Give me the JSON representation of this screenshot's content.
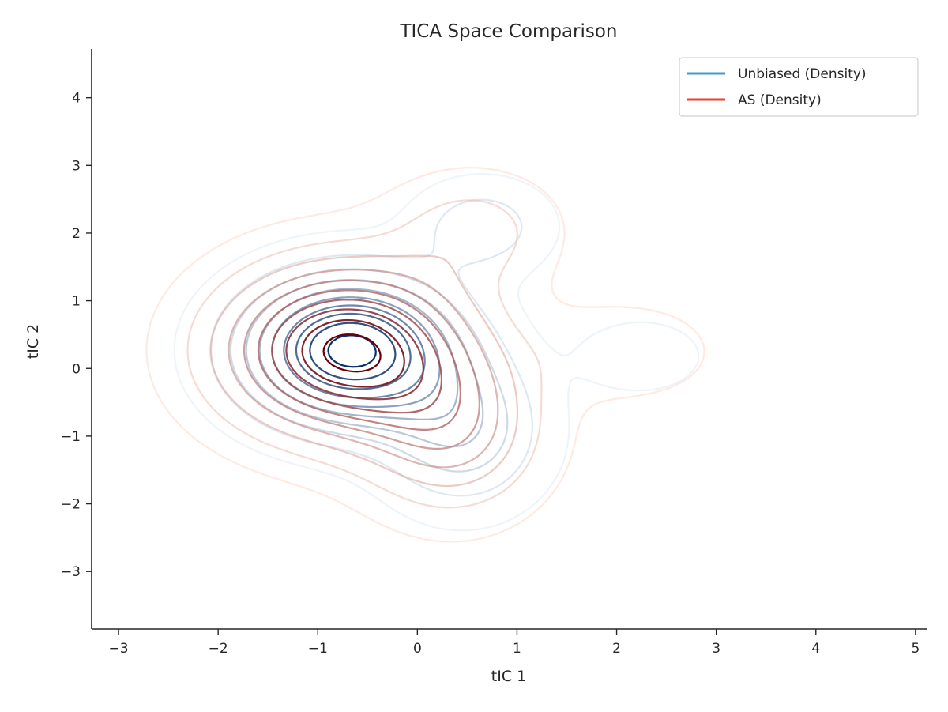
{
  "chart_data": {
    "type": "contour",
    "title": "TICA Space Comparison",
    "xlabel": "tIC 1",
    "ylabel": "tIC 2",
    "xlim": [
      -3.27,
      5.12
    ],
    "ylim": [
      -3.85,
      4.72
    ],
    "xticks": [
      -3,
      -2,
      -1,
      0,
      1,
      2,
      3,
      4,
      5
    ],
    "yticks": [
      -3,
      -2,
      -1,
      0,
      1,
      2,
      3,
      4
    ],
    "legend_position": "top-right",
    "grid": false,
    "series": [
      {
        "name": "Unbiased (Density)",
        "legend_color": "#4a98c9",
        "color_light": "#d6e6f4",
        "color_dark": "#08306b",
        "levels": 10,
        "components": [
          {
            "cx": -0.68,
            "cy": 0.27,
            "sx": 0.72,
            "sy": 0.72,
            "w": 1.0
          },
          {
            "cx": 0.45,
            "cy": -0.95,
            "sx": 0.55,
            "sy": 0.75,
            "w": 0.32
          },
          {
            "cx": 0.65,
            "cy": 2.1,
            "sx": 0.45,
            "sy": 0.45,
            "w": 0.22
          },
          {
            "cx": 2.25,
            "cy": 0.18,
            "sx": 0.4,
            "sy": 0.35,
            "w": 0.14
          }
        ]
      },
      {
        "name": "AS (Density)",
        "legend_color": "#e8412f",
        "color_light": "#fdd0bd",
        "color_dark": "#67000d",
        "levels": 10,
        "components": [
          {
            "cx": -0.72,
            "cy": 0.27,
            "sx": 0.82,
            "sy": 0.82,
            "w": 1.0
          },
          {
            "cx": 0.35,
            "cy": -0.95,
            "sx": 0.6,
            "sy": 0.8,
            "w": 0.38
          },
          {
            "cx": 0.55,
            "cy": 2.05,
            "sx": 0.55,
            "sy": 0.55,
            "w": 0.2
          },
          {
            "cx": 2.1,
            "cy": 0.25,
            "sx": 0.55,
            "sy": 0.45,
            "w": 0.14
          }
        ]
      }
    ]
  }
}
